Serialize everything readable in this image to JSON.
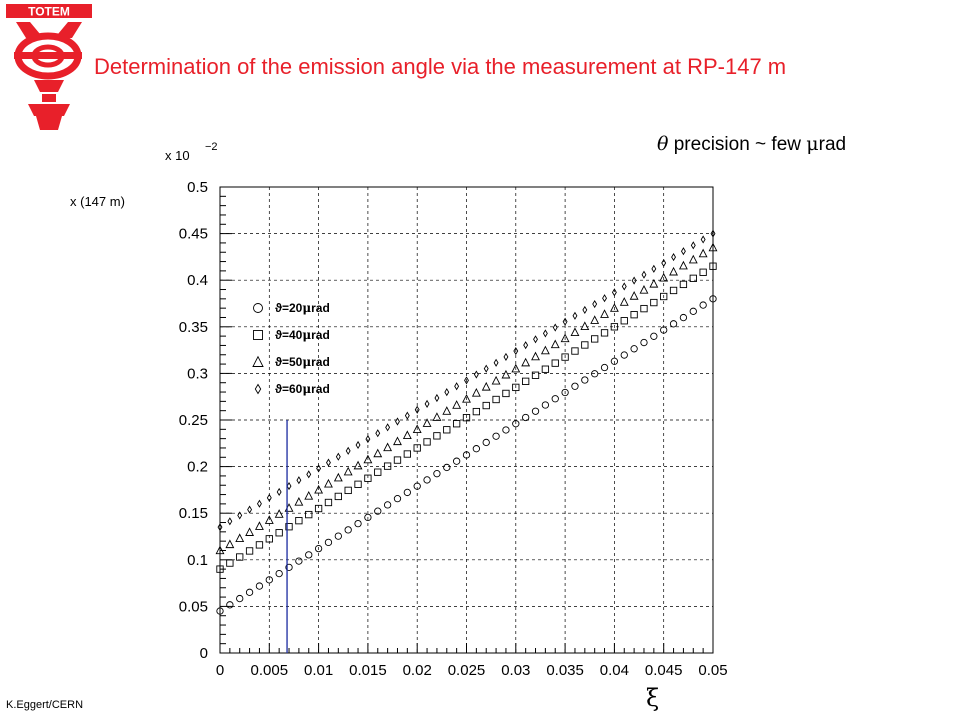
{
  "logo": {
    "text": "TOTEM"
  },
  "title": "Determination of the emission angle via the measurement at RP-147 m",
  "precision": {
    "theta_symbol": "θ",
    "text_before_mu": " precision ~ few ",
    "mu_symbol": "μ",
    "text_after_mu": "rad"
  },
  "footer": "K.Eggert/CERN",
  "colors": {
    "title": "#e8202a",
    "marker_line": "#1a2aa0",
    "grid": "#000000"
  },
  "chart_data": {
    "type": "scatter",
    "xlabel": "ξ",
    "ylabel": "x (147 m)",
    "y_multiplier": "x 10",
    "y_multiplier_exp": "−2",
    "xlim": [
      0,
      0.05
    ],
    "ylim": [
      0,
      0.5
    ],
    "x_ticks": [
      "0",
      "0.005",
      "0.01",
      "0.015",
      "0.02",
      "0.025",
      "0.03",
      "0.035",
      "0.04",
      "0.045",
      "0.05"
    ],
    "y_ticks": [
      "0",
      "0.05",
      "0.1",
      "0.15",
      "0.2",
      "0.25",
      "0.3",
      "0.35",
      "0.4",
      "0.45",
      "0.5"
    ],
    "grid": true,
    "legend_position": "upper-left",
    "series": [
      {
        "name": "ϑ=20μrad",
        "label_prefix": "ϑ=20",
        "label_mu": "μ",
        "label_suffix": "rad",
        "marker": "circle",
        "intercept": 0.045,
        "slope": 6.7
      },
      {
        "name": "ϑ=40μrad",
        "label_prefix": "ϑ=40",
        "label_mu": "μ",
        "label_suffix": "rad",
        "marker": "square",
        "intercept": 0.09,
        "slope": 6.5
      },
      {
        "name": "ϑ=50μrad",
        "label_prefix": "ϑ=50",
        "label_mu": "μ",
        "label_suffix": "rad",
        "marker": "triangle",
        "intercept": 0.11,
        "slope": 6.5
      },
      {
        "name": "ϑ=60μrad",
        "label_prefix": "ϑ=60",
        "label_mu": "μ",
        "label_suffix": "rad",
        "marker": "diamond",
        "intercept": 0.135,
        "slope": 6.3
      }
    ],
    "x_step": 0.001,
    "vertical_marker": {
      "x": 0.0068,
      "y_top": 0.25
    }
  }
}
